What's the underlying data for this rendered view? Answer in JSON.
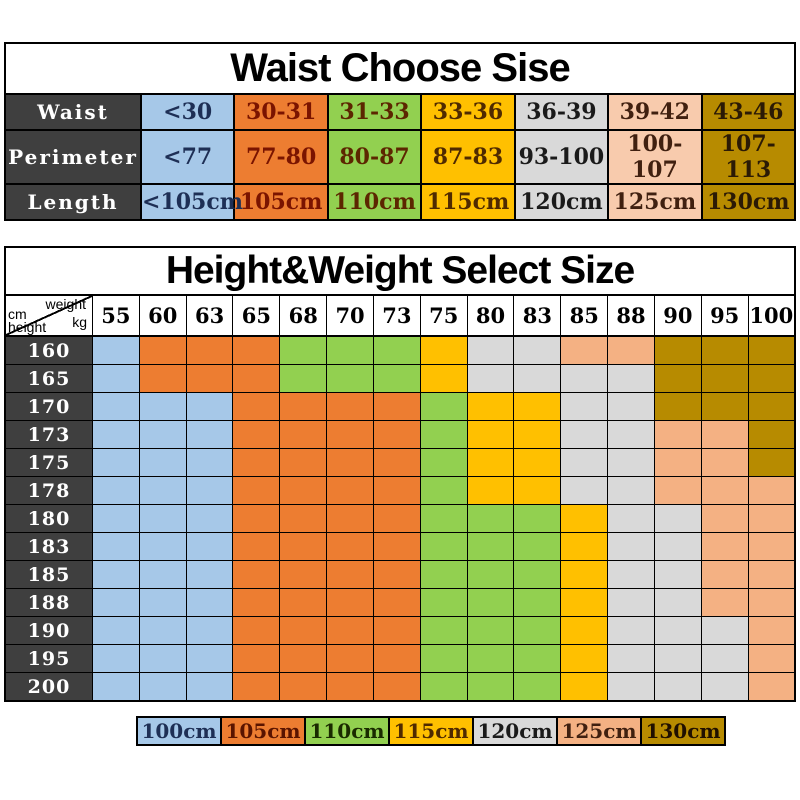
{
  "palette": {
    "blue": "#A6C8E8",
    "orange": "#ED7D31",
    "green": "#92D050",
    "yellow": "#FFC000",
    "gray": "#D9D9D9",
    "peach": "#F4B183",
    "peach_light": "#F8CBAD",
    "gold": "#B78B00",
    "header_dark": "#3F3F3F",
    "border": "#000000"
  },
  "chart_data": [
    {
      "type": "table",
      "title": "Waist Choose Sise",
      "row_headers": [
        "Waist",
        "Perimeter",
        "Length"
      ],
      "row_keys": [
        "waist",
        "perimeter",
        "length"
      ],
      "columns": [
        {
          "bg": "blue",
          "fg": "#1E2F55",
          "waist": "<30",
          "perimeter": "<77",
          "length": "<105cm"
        },
        {
          "bg": "orange",
          "fg": "#7A1400",
          "waist": "30-31",
          "perimeter": "77-80",
          "length": "105cm"
        },
        {
          "bg": "green",
          "fg": "#5C2600",
          "waist": "31-33",
          "perimeter": "80-87",
          "length": "110cm"
        },
        {
          "bg": "yellow",
          "fg": "#4F2A00",
          "waist": "33-36",
          "perimeter": "87-83",
          "length": "115cm"
        },
        {
          "bg": "gray",
          "fg": "#1A1A1A",
          "waist": "36-39",
          "perimeter": "93-100",
          "length": "120cm"
        },
        {
          "bg": "peach_light",
          "fg": "#402010",
          "waist": "39-42",
          "perimeter": "100-107",
          "length": "125cm"
        },
        {
          "bg": "gold",
          "fg": "#2B1A05",
          "waist": "43-46",
          "perimeter": "107-113",
          "length": "130cm"
        }
      ]
    },
    {
      "type": "heatmap",
      "title": "Height&Weight Select Size",
      "corner": {
        "top": "weight",
        "right_unit": "kg",
        "left_unit": "cm",
        "bottom": "height"
      },
      "weights_kg": [
        "55",
        "60",
        "63",
        "65",
        "68",
        "70",
        "73",
        "75",
        "80",
        "83",
        "85",
        "88",
        "90",
        "95",
        "100"
      ],
      "heights_cm": [
        "160",
        "165",
        "170",
        "173",
        "175",
        "178",
        "180",
        "183",
        "185",
        "188",
        "190",
        "195",
        "200"
      ],
      "matrix": [
        "BOOOGGGYEEPPDDD",
        "BOOOGGGYEEEEDDD",
        "BBBOOOOGYYEEDDD",
        "BBBOOOOGYYEEPPD",
        "BBBOOOOGYYEEPPD",
        "BBBOOOOGYYEEPPP",
        "BBBOOOOGGGYEEPP",
        "BBBOOOOGGGYEEPP",
        "BBBOOOOGGGYEEPP",
        "BBBOOOOGGGYEEPP",
        "BBBOOOOGGGYEEEP",
        "BBBOOOOGGGYEEEP",
        "BBBOOOOGGGYEEEP"
      ],
      "code_to_size": {
        "B": "100cm",
        "O": "105cm",
        "G": "110cm",
        "Y": "115cm",
        "E": "120cm",
        "P": "125cm",
        "D": "130cm"
      },
      "code_to_color": {
        "B": "blue",
        "O": "orange",
        "G": "green",
        "Y": "yellow",
        "E": "gray",
        "P": "peach",
        "D": "gold"
      },
      "legend": [
        {
          "label": "100cm",
          "color": "blue",
          "fg": "#1E2F55"
        },
        {
          "label": "105cm",
          "color": "orange",
          "fg": "#5A1400"
        },
        {
          "label": "110cm",
          "color": "green",
          "fg": "#1A2A00"
        },
        {
          "label": "115cm",
          "color": "yellow",
          "fg": "#4F2A00"
        },
        {
          "label": "120cm",
          "color": "gray",
          "fg": "#1A1A1A"
        },
        {
          "label": "125cm",
          "color": "peach",
          "fg": "#402010"
        },
        {
          "label": "130cm",
          "color": "gold",
          "fg": "#201000"
        }
      ],
      "legend_position": "bottom"
    }
  ]
}
